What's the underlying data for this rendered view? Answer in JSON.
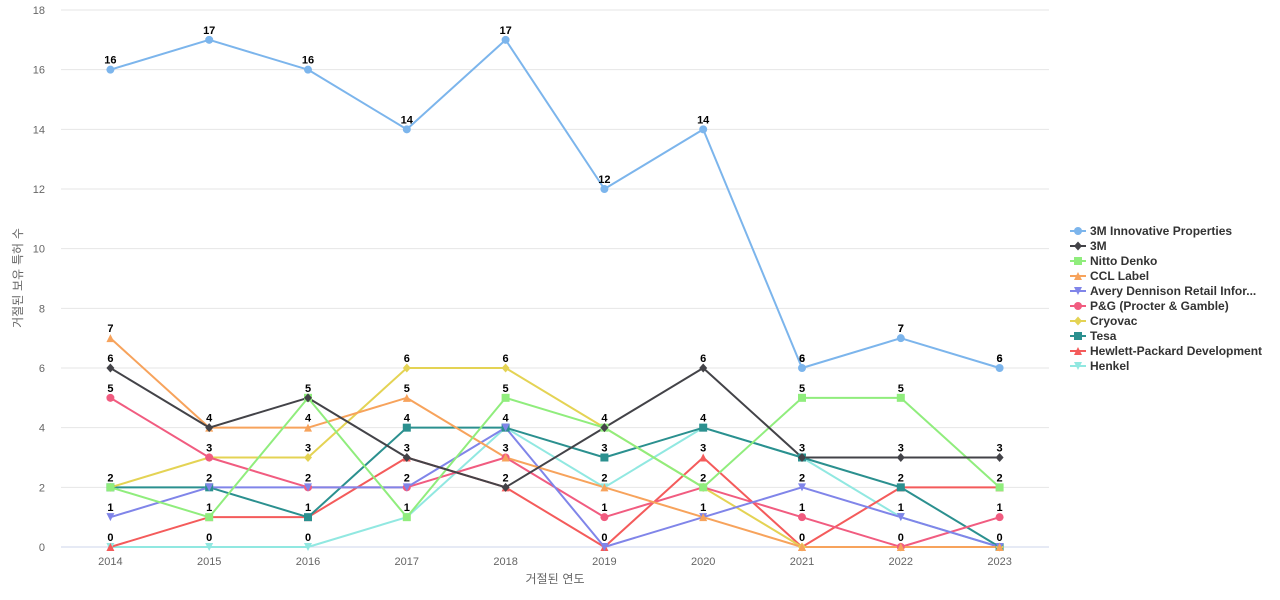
{
  "chart_data": {
    "type": "line",
    "title": "",
    "xlabel": "거절된 연도",
    "ylabel": "거절된 보유 특허 수",
    "x": [
      "2014",
      "2015",
      "2016",
      "2017",
      "2018",
      "2019",
      "2020",
      "2021",
      "2022",
      "2023"
    ],
    "ylim": [
      0,
      18
    ],
    "yticks": [
      0,
      2,
      4,
      6,
      8,
      10,
      12,
      14,
      16,
      18
    ],
    "grid": true,
    "legend_position": "right",
    "series": [
      {
        "name": "3M Innovative Properties",
        "color": "#7cb5ec",
        "marker": "circle",
        "values": [
          16,
          17,
          16,
          14,
          17,
          12,
          14,
          6,
          7,
          6
        ]
      },
      {
        "name": "3M",
        "color": "#434348",
        "marker": "diamond",
        "values": [
          6,
          4,
          5,
          3,
          2,
          4,
          6,
          3,
          3,
          3
        ]
      },
      {
        "name": "Nitto Denko",
        "color": "#90ed7d",
        "marker": "square",
        "values": [
          2,
          1,
          5,
          1,
          5,
          4,
          2,
          5,
          5,
          2
        ]
      },
      {
        "name": "CCL Label",
        "color": "#f7a35c",
        "marker": "triangle",
        "values": [
          7,
          4,
          4,
          5,
          3,
          2,
          1,
          0,
          0,
          0
        ]
      },
      {
        "name": "Avery Dennison Retail Infor...",
        "color": "#8085e9",
        "marker": "triangle-down",
        "values": [
          1,
          2,
          2,
          2,
          4,
          0,
          1,
          2,
          1,
          0
        ]
      },
      {
        "name": "P&G (Procter & Gamble)",
        "color": "#f15c80",
        "marker": "circle",
        "values": [
          5,
          3,
          2,
          2,
          3,
          1,
          2,
          1,
          0,
          1
        ]
      },
      {
        "name": "Cryovac",
        "color": "#e4d354",
        "marker": "diamond",
        "values": [
          2,
          3,
          3,
          6,
          6,
          4,
          2,
          0,
          0,
          0
        ]
      },
      {
        "name": "Tesa",
        "color": "#2b908f",
        "marker": "square",
        "values": [
          2,
          2,
          1,
          4,
          4,
          3,
          4,
          3,
          2,
          0
        ]
      },
      {
        "name": "Hewlett-Packard Development",
        "color": "#f45b5b",
        "marker": "triangle",
        "values": [
          0,
          1,
          1,
          3,
          2,
          0,
          3,
          0,
          2,
          2
        ]
      },
      {
        "name": "Henkel",
        "color": "#91e8e1",
        "marker": "triangle-down",
        "values": [
          0,
          0,
          0,
          1,
          4,
          2,
          4,
          3,
          1,
          0
        ]
      }
    ],
    "data_label_series": [
      {
        "name": "3M Innovative Properties",
        "labels": [
          "16",
          "17",
          "16",
          "14",
          "17",
          "12",
          "14",
          "6",
          "7",
          "6"
        ]
      }
    ],
    "column_labels": [
      [
        "7",
        "6",
        "5",
        "2",
        "1",
        "0"
      ],
      [
        "4",
        "3",
        "2",
        "1",
        "0"
      ],
      [
        "5",
        "4",
        "3",
        "2",
        "1",
        "0"
      ],
      [
        "6",
        "5",
        "4",
        "3",
        "2",
        "1"
      ],
      [
        "6",
        "5",
        "4",
        "3",
        "2"
      ],
      [
        "4",
        "3",
        "2",
        "1",
        "0"
      ],
      [
        "6",
        "4",
        "3",
        "2",
        "1"
      ],
      [
        "6",
        "5",
        "3",
        "2",
        "1",
        "0"
      ],
      [
        "7",
        "5",
        "3",
        "2",
        "1",
        "0"
      ],
      [
        "6",
        "3",
        "2",
        "1",
        "0"
      ]
    ]
  }
}
